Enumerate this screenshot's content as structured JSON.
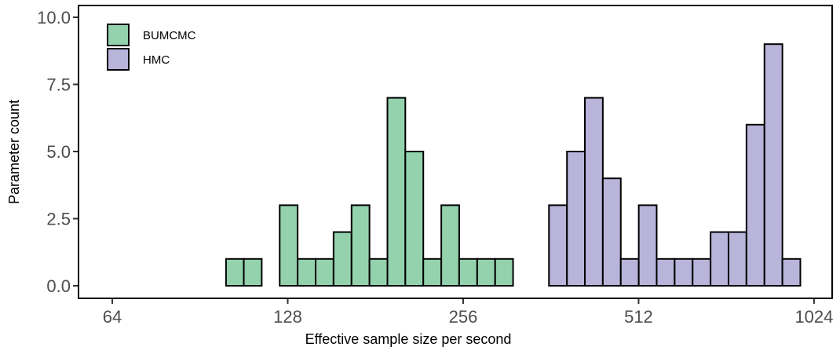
{
  "chart_data": {
    "type": "bar",
    "title": "",
    "xlabel": "Effective sample size per second",
    "ylabel": "Parameter count",
    "x_scale": "log2",
    "xlim": [
      56,
      1100
    ],
    "ylim": [
      0,
      10
    ],
    "x_ticks": [
      64,
      128,
      256,
      512,
      1024
    ],
    "x_tick_labels": [
      "64",
      "128",
      "256",
      "512",
      "1024"
    ],
    "y_ticks": [
      0,
      2.5,
      5,
      7.5,
      10
    ],
    "y_tick_labels": [
      "0.0",
      "2.5",
      "5.0",
      "7.5",
      "10.0"
    ],
    "grid": false,
    "legend_position": "top-left",
    "series": [
      {
        "name": "BUMCMC",
        "color": "#93d2ad",
        "bins": [
          {
            "x0": 100.3,
            "x1": 107.6,
            "count": 1
          },
          {
            "x0": 107.6,
            "x1": 115.5,
            "count": 1
          },
          {
            "x0": 115.5,
            "x1": 124.0,
            "count": 0
          },
          {
            "x0": 124.0,
            "x1": 133.1,
            "count": 3
          },
          {
            "x0": 133.1,
            "x1": 142.9,
            "count": 1
          },
          {
            "x0": 142.9,
            "x1": 153.4,
            "count": 1
          },
          {
            "x0": 153.4,
            "x1": 164.7,
            "count": 2
          },
          {
            "x0": 164.7,
            "x1": 176.8,
            "count": 3
          },
          {
            "x0": 176.8,
            "x1": 189.8,
            "count": 1
          },
          {
            "x0": 189.8,
            "x1": 203.7,
            "count": 7
          },
          {
            "x0": 203.7,
            "x1": 218.7,
            "count": 5
          },
          {
            "x0": 218.7,
            "x1": 234.8,
            "count": 1
          },
          {
            "x0": 234.8,
            "x1": 252.0,
            "count": 3
          },
          {
            "x0": 252.0,
            "x1": 270.6,
            "count": 1
          },
          {
            "x0": 270.6,
            "x1": 290.5,
            "count": 1
          },
          {
            "x0": 290.5,
            "x1": 311.8,
            "count": 1
          }
        ]
      },
      {
        "name": "HMC",
        "color": "#b8b4da",
        "bins": [
          {
            "x0": 359.3,
            "x1": 385.8,
            "count": 3
          },
          {
            "x0": 385.8,
            "x1": 414.1,
            "count": 5
          },
          {
            "x0": 414.1,
            "x1": 444.5,
            "count": 7
          },
          {
            "x0": 444.5,
            "x1": 477.2,
            "count": 4
          },
          {
            "x0": 477.2,
            "x1": 512.3,
            "count": 1
          },
          {
            "x0": 512.3,
            "x1": 549.9,
            "count": 3
          },
          {
            "x0": 549.9,
            "x1": 590.4,
            "count": 1
          },
          {
            "x0": 590.4,
            "x1": 633.8,
            "count": 1
          },
          {
            "x0": 633.8,
            "x1": 680.4,
            "count": 1
          },
          {
            "x0": 680.4,
            "x1": 730.4,
            "count": 2
          },
          {
            "x0": 730.4,
            "x1": 784.1,
            "count": 2
          },
          {
            "x0": 784.1,
            "x1": 841.8,
            "count": 6
          },
          {
            "x0": 841.8,
            "x1": 903.7,
            "count": 9
          },
          {
            "x0": 903.7,
            "x1": 970.1,
            "count": 1
          }
        ]
      }
    ]
  }
}
